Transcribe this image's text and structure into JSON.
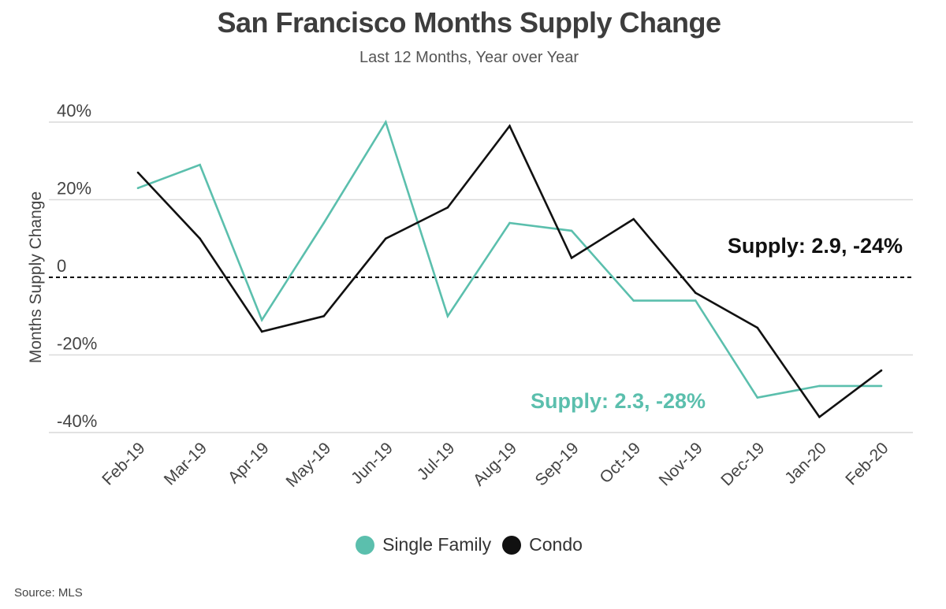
{
  "title": "San Francisco Months Supply Change",
  "subtitle": "Last 12 Months, Year over Year",
  "source": "Source: MLS",
  "chart_data": {
    "type": "line",
    "categories": [
      "Feb-19",
      "Mar-19",
      "Apr-19",
      "May-19",
      "Jun-19",
      "Jul-19",
      "Aug-19",
      "Sep-19",
      "Oct-19",
      "Nov-19",
      "Dec-19",
      "Jan-20",
      "Feb-20"
    ],
    "series": [
      {
        "name": "Single Family",
        "color": "#5bbfad",
        "values": [
          23,
          29,
          -11,
          14,
          40,
          -10,
          14,
          12,
          -6,
          -6,
          -31,
          -28,
          -28
        ]
      },
      {
        "name": "Condo",
        "color": "#111111",
        "values": [
          27,
          10,
          -14,
          -10,
          10,
          18,
          39,
          5,
          15,
          -4,
          -13,
          -36,
          -24
        ]
      }
    ],
    "ylabel": "Months Supply Change",
    "xlabel": "",
    "ylim": [
      -40,
      40
    ],
    "yticks": [
      {
        "value": 40,
        "label": "40%"
      },
      {
        "value": 20,
        "label": "20%"
      },
      {
        "value": 0,
        "label": "0"
      },
      {
        "value": -20,
        "label": "-20%"
      },
      {
        "value": -40,
        "label": "-40%"
      }
    ],
    "grid": true,
    "zero_line": "dashed",
    "legend_position": "bottom-center",
    "annotations": [
      {
        "text": "Supply: 2.9, -24%",
        "series": "Condo",
        "color": "#111111"
      },
      {
        "text": "Supply: 2.3, -28%",
        "series": "Single Family",
        "color": "#5bbfad"
      }
    ]
  }
}
